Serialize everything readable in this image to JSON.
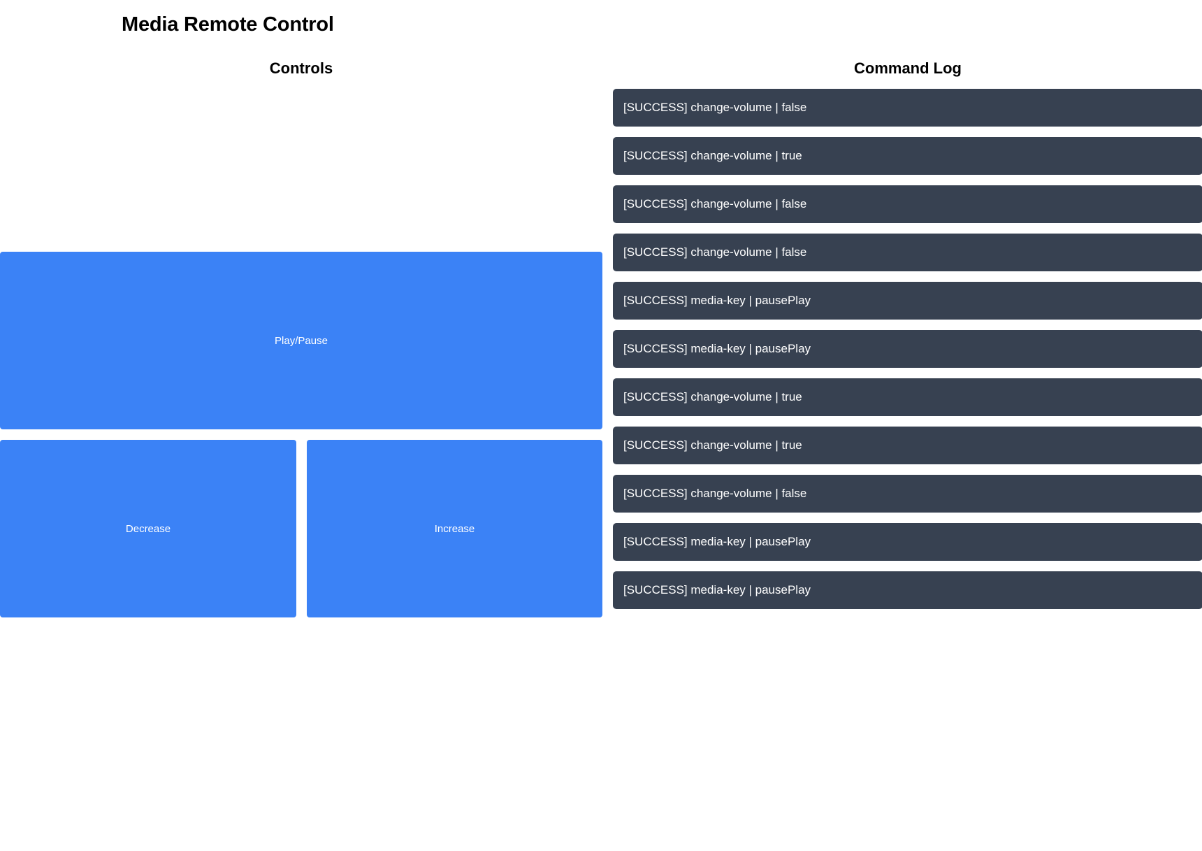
{
  "page": {
    "title": "Media Remote Control"
  },
  "controls": {
    "heading": "Controls",
    "play_pause_label": "Play/Pause",
    "decrease_label": "Decrease",
    "increase_label": "Increase"
  },
  "command_log": {
    "heading": "Command Log",
    "entries": [
      "[SUCCESS] change-volume | false",
      "[SUCCESS] change-volume | true",
      "[SUCCESS] change-volume | false",
      "[SUCCESS] change-volume | false",
      "[SUCCESS] media-key | pausePlay",
      "[SUCCESS] media-key | pausePlay",
      "[SUCCESS] change-volume | true",
      "[SUCCESS] change-volume | true",
      "[SUCCESS] change-volume | false",
      "[SUCCESS] media-key | pausePlay",
      "[SUCCESS] media-key | pausePlay"
    ]
  },
  "colors": {
    "button_background": "#3b82f6",
    "log_entry_background": "#374151",
    "text_on_dark": "#ffffff"
  }
}
